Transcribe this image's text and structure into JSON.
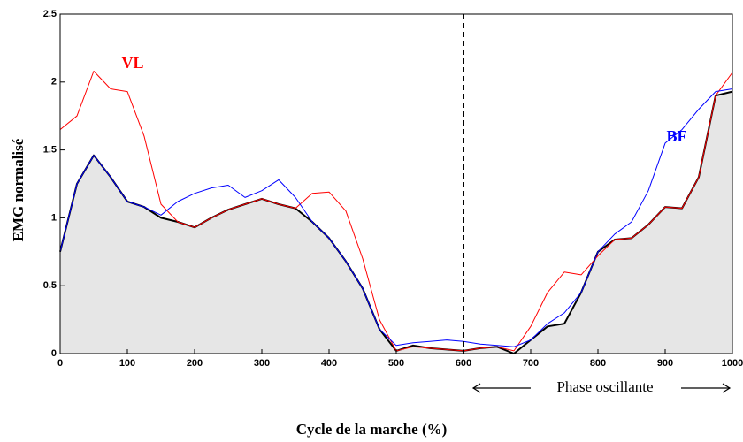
{
  "chart_data": {
    "type": "line",
    "x_label": "Cycle de la marche (%)",
    "y_label": "EMG  normalisé",
    "annotation": "Phase oscillante",
    "vlines": [
      600
    ],
    "x": [
      0,
      25,
      50,
      75,
      100,
      125,
      150,
      175,
      200,
      225,
      250,
      275,
      300,
      325,
      350,
      375,
      400,
      425,
      450,
      475,
      500,
      525,
      550,
      575,
      600,
      625,
      650,
      675,
      700,
      725,
      750,
      775,
      800,
      825,
      850,
      875,
      900,
      925,
      950,
      975,
      1000
    ],
    "series": [
      {
        "name": "VL",
        "color": "#ff0000",
        "values": [
          1.65,
          1.75,
          2.08,
          1.95,
          1.93,
          1.6,
          1.1,
          0.97,
          0.93,
          1.0,
          1.06,
          1.1,
          1.14,
          1.1,
          1.07,
          1.18,
          1.19,
          1.05,
          0.7,
          0.25,
          0.02,
          0.05,
          0.04,
          0.03,
          0.02,
          0.04,
          0.05,
          0.02,
          0.2,
          0.45,
          0.6,
          0.58,
          0.72,
          0.84,
          0.85,
          0.95,
          1.08,
          1.07,
          1.3,
          1.9,
          2.07
        ]
      },
      {
        "name": "BF",
        "color": "#0000ff",
        "values": [
          0.75,
          1.25,
          1.46,
          1.3,
          1.12,
          1.08,
          1.02,
          1.12,
          1.18,
          1.22,
          1.24,
          1.15,
          1.2,
          1.28,
          1.15,
          0.97,
          0.85,
          0.68,
          0.48,
          0.18,
          0.06,
          0.08,
          0.09,
          0.1,
          0.09,
          0.07,
          0.06,
          0.05,
          0.1,
          0.22,
          0.3,
          0.45,
          0.75,
          0.88,
          0.97,
          1.2,
          1.55,
          1.65,
          1.8,
          1.93,
          1.95
        ]
      },
      {
        "color": "#000000",
        "fill": "#e6e6e6",
        "values": [
          0.75,
          1.25,
          1.46,
          1.3,
          1.12,
          1.08,
          1.0,
          0.97,
          0.93,
          1.0,
          1.06,
          1.1,
          1.14,
          1.1,
          1.07,
          0.97,
          0.85,
          0.68,
          0.48,
          0.18,
          0.02,
          0.06,
          0.04,
          0.03,
          0.02,
          0.04,
          0.05,
          0.0,
          0.1,
          0.2,
          0.22,
          0.45,
          0.75,
          0.84,
          0.85,
          0.95,
          1.08,
          1.07,
          1.3,
          1.9,
          1.93
        ]
      }
    ],
    "xlim": [
      0,
      1000
    ],
    "xticks": [
      0,
      100,
      200,
      300,
      400,
      500,
      600,
      700,
      800,
      900,
      1000
    ],
    "ylim": [
      0,
      2.5
    ],
    "yticks": [
      0,
      0.5,
      1,
      1.5,
      2,
      2.5
    ]
  }
}
